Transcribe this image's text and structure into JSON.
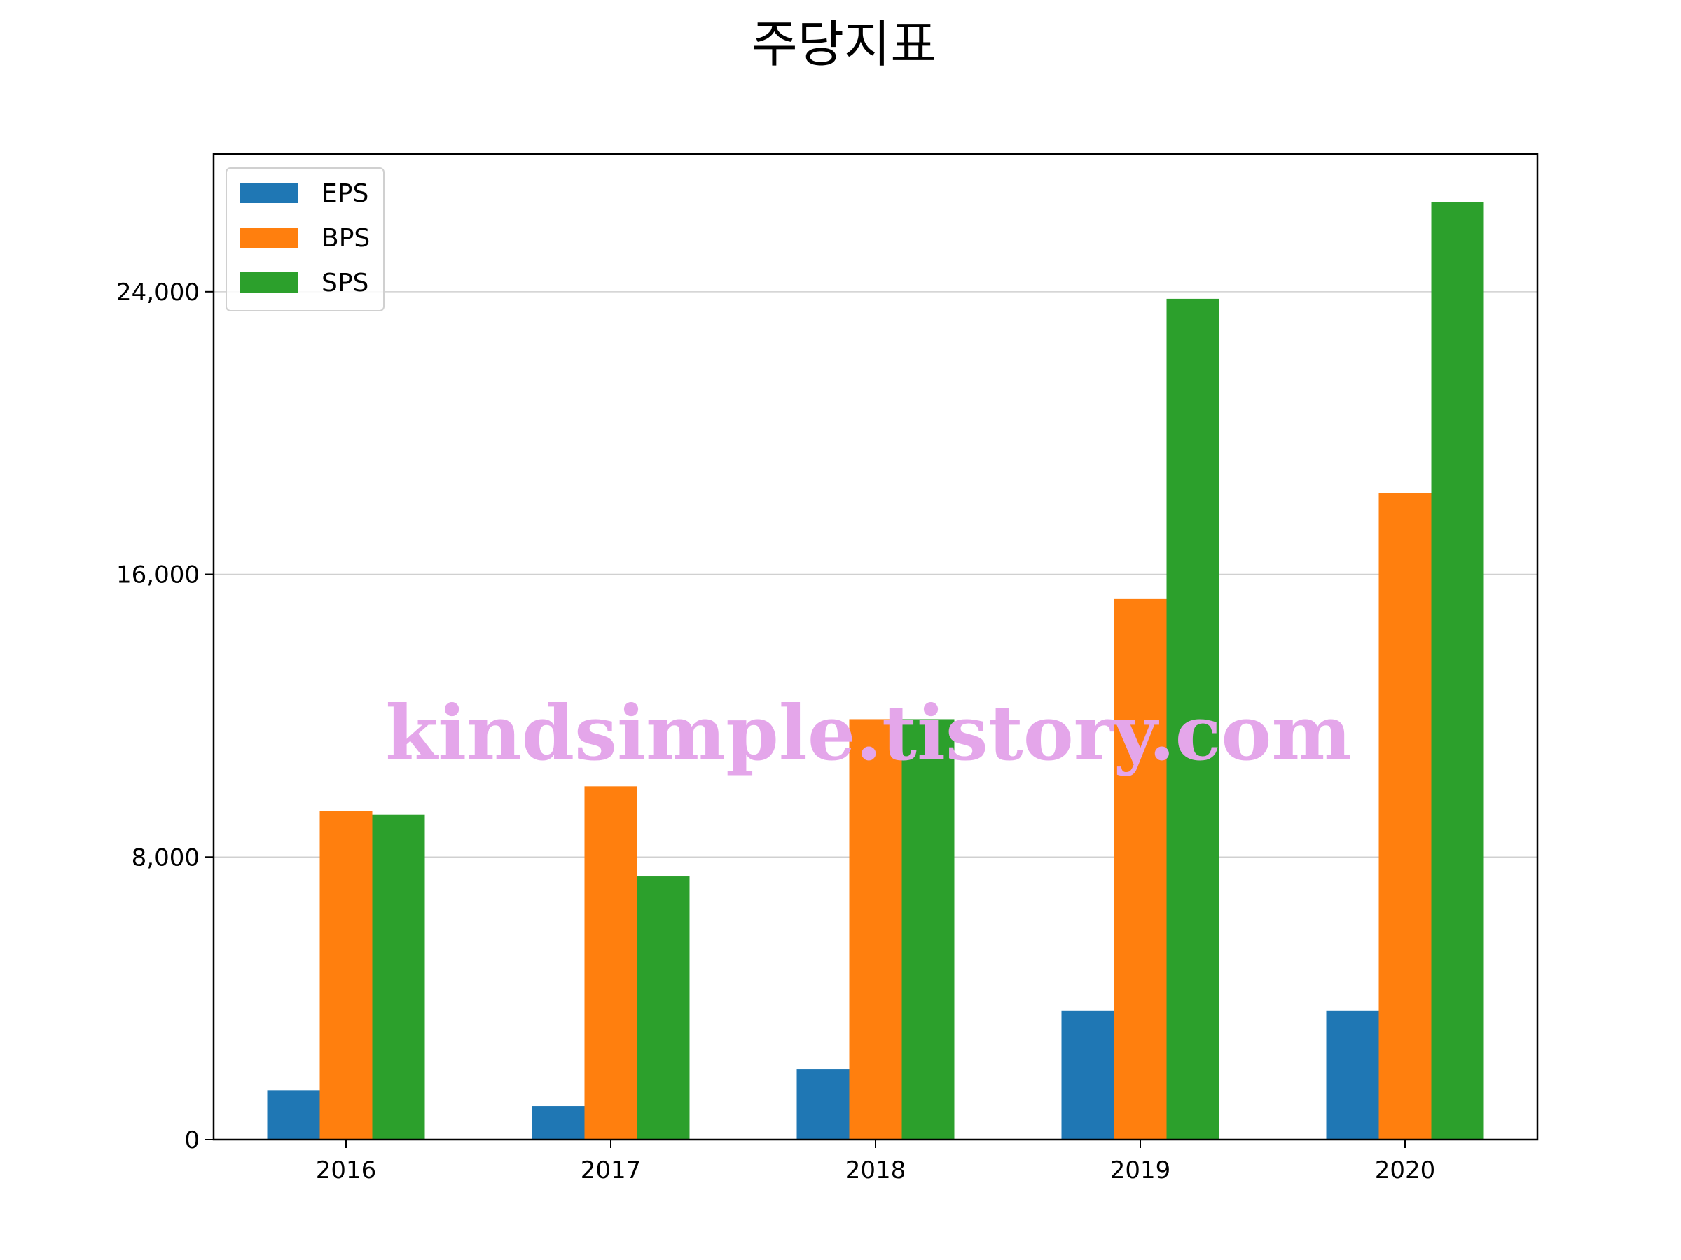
{
  "chart_data": {
    "type": "bar",
    "title": "주당지표",
    "xlabel": "",
    "ylabel": "",
    "categories": [
      "2016",
      "2017",
      "2018",
      "2019",
      "2020"
    ],
    "series": [
      {
        "name": "EPS",
        "color": "#1f77b4",
        "values": [
          1400,
          950,
          2000,
          3650,
          3650
        ]
      },
      {
        "name": "BPS",
        "color": "#ff7f0e",
        "values": [
          9300,
          10000,
          11900,
          15300,
          18300
        ]
      },
      {
        "name": "SPS",
        "color": "#2ca02c",
        "values": [
          9200,
          7450,
          11900,
          23800,
          26550
        ]
      }
    ],
    "ylim": [
      0,
      27900
    ],
    "yticks": [
      0,
      8000,
      16000,
      24000
    ],
    "ytick_labels": [
      "0",
      "8,000",
      "16,000",
      "24,000"
    ],
    "grid": "y",
    "legend_position": "top-left"
  },
  "watermark": "kindsimple.tistory.com"
}
